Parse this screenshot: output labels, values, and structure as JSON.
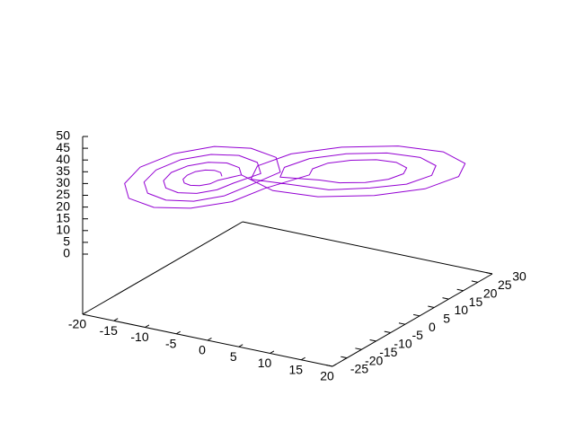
{
  "chart_data": {
    "type": "line3d",
    "color": "#9400d3",
    "xlim": [
      -20,
      20
    ],
    "ylim": [
      -25,
      30
    ],
    "zlim": [
      0,
      50
    ],
    "xticks": [
      -20,
      -15,
      -10,
      -5,
      0,
      5,
      10,
      15,
      20
    ],
    "yticks": [
      -25,
      -20,
      -15,
      -10,
      -5,
      0,
      5,
      10,
      15,
      20,
      25,
      30
    ],
    "zticks": [
      0,
      5,
      10,
      15,
      20,
      25,
      30,
      35,
      40,
      45,
      50
    ],
    "x": [
      -6.5,
      -6.8,
      -7.5,
      -8.5,
      -9.5,
      -10.2,
      -10.5,
      -10.2,
      -9.5,
      -8.5,
      -7.5,
      -6.8,
      -4.5,
      -5.0,
      -6.5,
      -8.5,
      -10.5,
      -12.0,
      -12.5,
      -12.0,
      -10.5,
      -8.5,
      -6.5,
      -5.0,
      -2.5,
      -3.3,
      -5.5,
      -8.5,
      -11.5,
      -13.7,
      -14.5,
      -13.7,
      -11.5,
      -8.5,
      -5.5,
      -3.3,
      -0.5,
      -1.5,
      -4.5,
      -8.5,
      -12.5,
      -15.5,
      -16.5,
      -15.5,
      -12.5,
      -8.5,
      -4.5,
      -1.5,
      3.5,
      4.2,
      6.0,
      8.5,
      11.0,
      12.8,
      13.5,
      12.8,
      11.0,
      8.5,
      6.0,
      4.2,
      0.5,
      1.5,
      4.5,
      8.5,
      12.5,
      15.5,
      16.5,
      15.5,
      12.5,
      8.5,
      4.5,
      1.5,
      -2.5,
      -1.0,
      3.0,
      8.5,
      14.0,
      18.0,
      19.5,
      18.0,
      14.0,
      8.5,
      3.0,
      -1.0,
      -4.5,
      -5.0,
      -6.5,
      -8.5,
      -10.5,
      -12.0,
      -12.5,
      -12.0,
      -10.5,
      -8.5,
      -6.5,
      -5.0
    ],
    "y": [
      -6.1,
      -5.9,
      -6.5,
      -7.5,
      -8.9,
      -10.1,
      -10.9,
      -11.1,
      -10.5,
      -9.5,
      -8.1,
      -6.9,
      -3.7,
      -3.4,
      -4.4,
      -6.5,
      -9.2,
      -11.7,
      -13.3,
      -13.6,
      -12.6,
      -10.5,
      -7.8,
      -5.3,
      -1.3,
      -0.8,
      -2.4,
      -5.5,
      -9.6,
      -13.3,
      -15.7,
      -16.2,
      -14.6,
      -11.5,
      -7.4,
      -3.7,
      1.1,
      1.8,
      -0.4,
      -4.4,
      -9.9,
      -14.9,
      -18.1,
      -18.8,
      -16.6,
      -12.6,
      -7.0,
      -2.1,
      2.5,
      2.1,
      3.4,
      6.0,
      9.4,
      12.5,
      14.5,
      14.9,
      13.6,
      11.0,
      7.6,
      4.5,
      -1.1,
      -1.8,
      0.4,
      4.4,
      9.9,
      14.9,
      18.1,
      18.8,
      16.6,
      12.6,
      7.0,
      2.1,
      -4.7,
      -5.7,
      -2.7,
      2.9,
      10.5,
      17.4,
      21.7,
      22.7,
      19.7,
      14.1,
      6.5,
      -0.4,
      -3.7,
      -3.4,
      -4.4,
      -6.5,
      -9.2,
      -11.7,
      -13.3,
      -13.6,
      -12.6,
      -10.5,
      -7.8,
      -5.3
    ],
    "z": [
      27,
      28.3,
      29.3,
      29.6,
      29.3,
      28.3,
      27,
      25.7,
      24.7,
      24.4,
      24.7,
      25.7,
      27,
      29.6,
      31.5,
      32.2,
      31.5,
      29.6,
      27,
      24.4,
      22.5,
      21.8,
      22.5,
      24.4,
      27,
      30.9,
      33.8,
      34.8,
      33.8,
      30.9,
      27,
      23.1,
      20.2,
      19.2,
      20.2,
      23.1,
      27,
      32.2,
      36.0,
      37.4,
      36.0,
      32.2,
      27,
      21.8,
      18.0,
      17.0,
      18.0,
      21.8,
      27,
      30.3,
      32.7,
      33.5,
      32.7,
      30.3,
      27,
      23.8,
      21.4,
      20.5,
      21.4,
      23.8,
      27,
      32.2,
      36.0,
      37.4,
      36.0,
      32.2,
      27,
      21.8,
      18.0,
      17.0,
      18.0,
      21.8,
      27,
      34.2,
      39.4,
      41.3,
      39.4,
      34.2,
      27,
      19.9,
      14.6,
      12.7,
      14.6,
      19.9,
      27,
      29.6,
      31.5,
      32.2,
      31.5,
      29.6,
      27,
      24.4,
      22.5,
      21.8,
      22.5,
      24.4
    ]
  }
}
